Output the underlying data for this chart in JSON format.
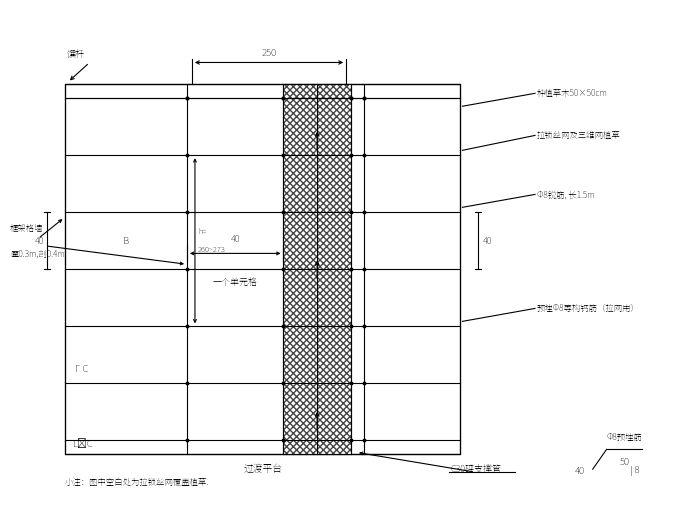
{
  "bg_color": "#ffffff",
  "line_color": "#000000",
  "fig_width": 6.6,
  "fig_height": 4.95,
  "title_bottom": "过渡平台",
  "note": "小注：图中空白处为拉锁丝网覆盖植草.",
  "annotations_right": [
    "种植草木50×50cm",
    "拉锁丝网及三维网植草",
    "Φ8锐筋, 长1.5m",
    "预埋Φ8等构钙筋（拉网用）"
  ],
  "annotation_bottom_right": "C30砰支撑管",
  "dim_top": "250",
  "dim_40_horiz": "40",
  "dim_40_left": "40",
  "dim_40_right": "40",
  "label_unit_span": "一个单元格",
  "label_B": "B",
  "label_C": "C",
  "label_scaffold": "框架格墙\n匷0.3m,剀0.4m",
  "label_jian": "馔杆",
  "label_h": "h=\n260~273",
  "anchor_top_label": "Φ8预埋筋",
  "anchor_dim_50": "50",
  "anchor_dim_40": "40",
  "anchor_dim_8": "| 8"
}
